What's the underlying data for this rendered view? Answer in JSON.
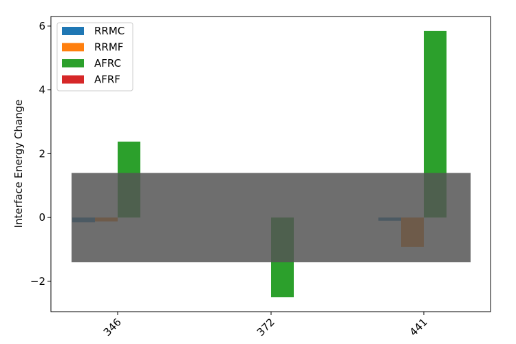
{
  "chart_data": {
    "type": "bar",
    "title": "",
    "xlabel": "",
    "ylabel": "Interface Energy Change",
    "categories": [
      "346",
      "372",
      "441"
    ],
    "series": [
      {
        "name": "RRMC",
        "color": "#1f77b4",
        "values": [
          -0.15,
          0,
          -0.1
        ]
      },
      {
        "name": "RRMF",
        "color": "#ff7f0e",
        "values": [
          -0.12,
          0,
          -0.92
        ]
      },
      {
        "name": "AFRC",
        "color": "#2ca02c",
        "values": [
          2.38,
          -2.5,
          5.85
        ]
      },
      {
        "name": "AFRF",
        "color": "#d62728",
        "values": [
          0,
          0,
          0
        ]
      }
    ],
    "ylim": [
      -2.95,
      6.3
    ],
    "yticks": [
      -2,
      0,
      2,
      4,
      6
    ],
    "ytick_labels": [
      "−2",
      "0",
      "2",
      "4",
      "6"
    ],
    "band": {
      "range": [
        -1.4,
        1.4
      ],
      "color": "#555555",
      "opacity": 0.85
    },
    "legend": "top-left",
    "grid": false
  }
}
